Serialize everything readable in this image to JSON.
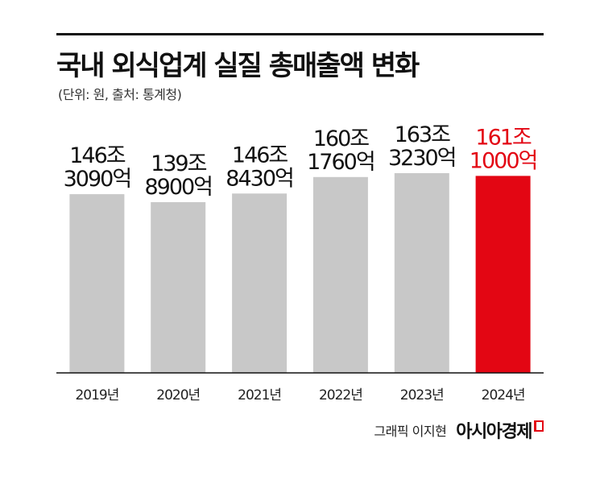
{
  "header": {
    "title": "국내 외식업계 실질 총매출액 변화",
    "subtitle": "(단위: 원, 출처: 통계청)"
  },
  "footer": {
    "credit": "그래픽 이지현",
    "brand": "아시아경제"
  },
  "colors": {
    "bar_default": "#c8c8c8",
    "bar_highlight": "#e30613",
    "label_default": "#111111",
    "label_highlight": "#e30613",
    "axis": "#111111"
  },
  "chart_data": {
    "type": "bar",
    "title": "국내 외식업계 실질 총매출액 변화",
    "unit": "원",
    "categories": [
      "2019년",
      "2020년",
      "2021년",
      "2022년",
      "2023년",
      "2024년"
    ],
    "values_trillion_won": [
      146.309,
      139.89,
      146.843,
      160.176,
      163.323,
      161.1
    ],
    "data_labels": [
      [
        "146조",
        "3090억"
      ],
      [
        "139조",
        "8900억"
      ],
      [
        "146조",
        "8430억"
      ],
      [
        "160조",
        "1760억"
      ],
      [
        "163조",
        "3230억"
      ],
      [
        "161조",
        "1000억"
      ]
    ],
    "highlight_index": 5,
    "ylim_trillion_won": [
      0,
      170
    ],
    "grid": false,
    "legend": "none"
  }
}
